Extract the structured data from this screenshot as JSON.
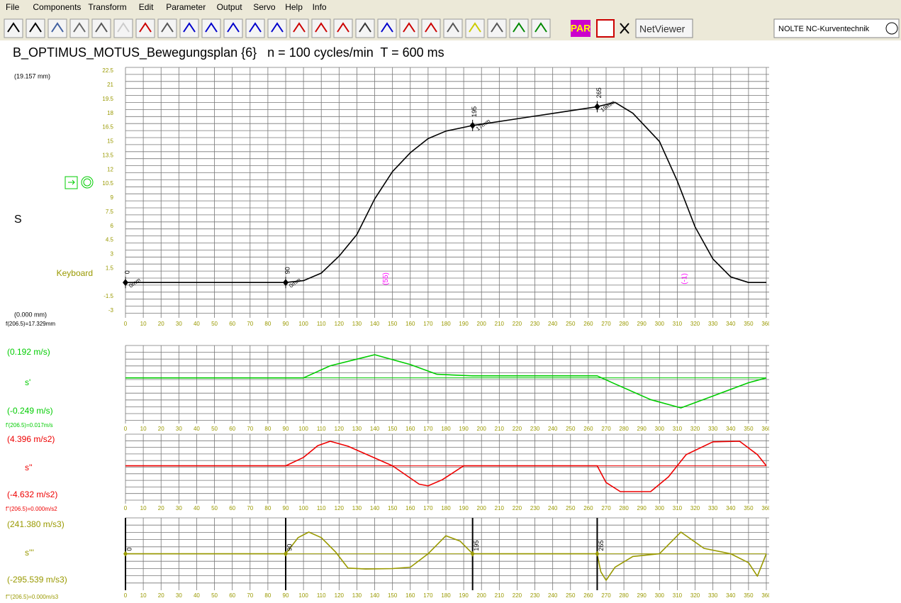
{
  "menu": [
    "File",
    "Components",
    "Transform",
    "Edit",
    "Parameter",
    "Output",
    "Servo",
    "Help",
    "Info"
  ],
  "toolbar": {
    "par": "PAR",
    "netviewer": "NetViewer",
    "brand": "NOLTE NC-Kurventechnik"
  },
  "title": "B_OPTIMUS_MOTUS_Bewegungsplan {6}   n = 100 cycles/min  T = 600 ms",
  "xlim": [
    0,
    360
  ],
  "xticks": [
    0,
    10,
    20,
    30,
    40,
    50,
    60,
    70,
    80,
    90,
    100,
    110,
    120,
    130,
    140,
    150,
    160,
    170,
    180,
    190,
    200,
    210,
    220,
    230,
    240,
    250,
    260,
    270,
    280,
    290,
    300,
    310,
    320,
    330,
    340,
    350,
    360
  ],
  "markers": [
    {
      "x": 0,
      "y": 0,
      "label": "0",
      "note": "0mm"
    },
    {
      "x": 90,
      "y": 0,
      "label": "90",
      "note": "0mm"
    },
    {
      "x": 195,
      "y": 16.7,
      "label": "195",
      "note": "17mm"
    },
    {
      "x": 265,
      "y": 18.7,
      "label": "265",
      "note": "19mm"
    }
  ],
  "annotations": [
    {
      "x": 145,
      "label": "(55)"
    },
    {
      "x": 313,
      "label": "(-1)"
    }
  ],
  "plots": [
    {
      "name": "S",
      "top_label": "(19.157 mm)",
      "bottom_label": "(0.000 mm)",
      "readout": "f(206.5)=17.329mm",
      "side_label": "Keyboard",
      "color": "#000000",
      "ylim": [
        -3,
        22.5
      ],
      "yticks": [
        22.5,
        21,
        19.5,
        18,
        16.5,
        15,
        13.5,
        12,
        10.5,
        9,
        7.5,
        6,
        4.5,
        3,
        1.5,
        -1.5,
        -3
      ],
      "x": [
        0,
        90,
        100,
        110,
        120,
        130,
        140,
        150,
        160,
        170,
        180,
        195,
        265,
        275,
        285,
        300,
        310,
        320,
        330,
        340,
        350,
        360
      ],
      "values": [
        0,
        0,
        0.2,
        1,
        2.8,
        5.1,
        8.9,
        11.8,
        13.8,
        15.3,
        16.1,
        16.7,
        18.7,
        19.157,
        18,
        15,
        10.8,
        5.9,
        2.5,
        0.6,
        0,
        0
      ]
    },
    {
      "name": "s'",
      "top_label": "(0.192 m/s)",
      "bottom_label": "(-0.249 m/s)",
      "readout": "f'(206.5)=0.017m/s",
      "color": "#00cc00",
      "ylim": [
        -0.249,
        0.192
      ],
      "x": [
        0,
        100,
        115,
        140,
        160,
        175,
        195,
        265,
        275,
        295,
        312,
        330,
        350,
        360
      ],
      "values": [
        0,
        0,
        0.1,
        0.192,
        0.11,
        0.03,
        0.017,
        0.017,
        -0.05,
        -0.18,
        -0.249,
        -0.15,
        -0.04,
        0
      ]
    },
    {
      "name": "s''",
      "top_label": "(4.396 m/s2)",
      "bottom_label": "(-4.632 m/s2)",
      "readout": "f''(206.5)=0.000m/s2",
      "color": "#ee0000",
      "ylim": [
        -4.632,
        4.396
      ],
      "x": [
        0,
        90,
        100,
        108,
        115,
        125,
        150,
        165,
        170,
        178,
        190,
        265,
        270,
        278,
        295,
        305,
        315,
        330,
        345,
        355,
        360
      ],
      "values": [
        0,
        0,
        1.5,
        3.6,
        4.396,
        3.5,
        0,
        -3.3,
        -3.6,
        -2.5,
        0,
        0,
        -3,
        -4.632,
        -4.632,
        -2,
        2,
        4.3,
        4.396,
        2,
        0
      ]
    },
    {
      "name": "s'''",
      "top_label": "(241.380 m/s3)",
      "bottom_label": "(-295.539 m/s3)",
      "readout": "f'''(206.5)=0.000m/s3",
      "color": "#999900",
      "ylim": [
        -295.539,
        241.38
      ],
      "x": [
        0,
        90,
        97,
        103,
        110,
        118,
        125,
        135,
        150,
        160,
        170,
        180,
        188,
        195,
        265,
        267,
        270,
        275,
        285,
        300,
        312,
        325,
        340,
        350,
        355,
        360
      ],
      "values": [
        0,
        0,
        180,
        241.38,
        180,
        20,
        -160,
        -170,
        -165,
        -150,
        0,
        200,
        140,
        0,
        0,
        -200,
        -295.539,
        -150,
        -30,
        0,
        241.38,
        60,
        0,
        -100,
        -250,
        0
      ]
    }
  ]
}
